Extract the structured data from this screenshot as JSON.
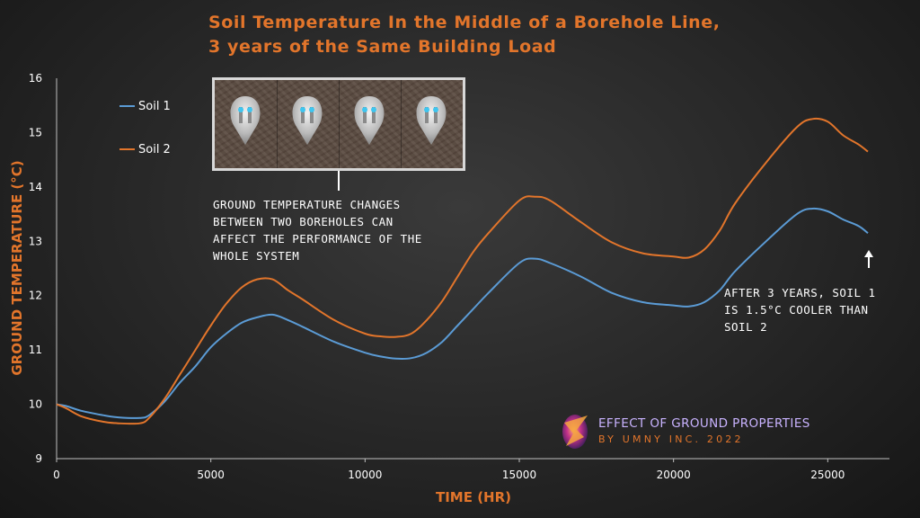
{
  "title_lines": [
    "Soil Temperature In the Middle of a Borehole Line,",
    "3 years of the Same Building Load"
  ],
  "annotations": {
    "inset_note": [
      "GROUND TEMPERATURE CHANGES",
      "BETWEEN TWO BOREHOLES CAN",
      "AFFECT THE PERFORMANCE OF THE",
      "WHOLE SYSTEM"
    ],
    "end_note": [
      "AFTER 3 YEARS, SOIL 1",
      "IS 1.5°C COOLER THAN",
      "SOIL 2"
    ]
  },
  "brand": {
    "line1": "EFFECT OF GROUND PROPERTIES",
    "line2": "BY UMNY INC. 2022"
  },
  "colors": {
    "soil1": "#5b9bd5",
    "soil2": "#e2752b",
    "accent": "#e2752b"
  },
  "chart_data": {
    "type": "line",
    "title": "Soil Temperature In the Middle of a Borehole Line, 3 years of the Same Building Load",
    "xlabel": "TIME (HR)",
    "ylabel": "GROUND TEMPERATURE (°C)",
    "xlim": [
      0,
      27000
    ],
    "ylim": [
      9,
      16
    ],
    "xticks": [
      0,
      5000,
      10000,
      15000,
      20000,
      25000
    ],
    "yticks": [
      9,
      10,
      11,
      12,
      13,
      14,
      15,
      16
    ],
    "grid": false,
    "legend": "top-left",
    "series": [
      {
        "name": "Soil 1",
        "x": [
          0,
          300,
          800,
          1500,
          2000,
          2700,
          3000,
          3500,
          4000,
          4500,
          5000,
          5500,
          6000,
          6500,
          7000,
          7500,
          8000,
          9000,
          10000,
          10500,
          11000,
          11500,
          12000,
          12500,
          13000,
          13500,
          14000,
          15000,
          15500,
          16000,
          17000,
          18000,
          19000,
          20000,
          20500,
          21000,
          21500,
          22000,
          23000,
          24000,
          24500,
          25000,
          25500,
          26000,
          26300
        ],
        "values": [
          10.0,
          9.97,
          9.88,
          9.8,
          9.76,
          9.75,
          9.8,
          10.05,
          10.4,
          10.7,
          11.05,
          11.3,
          11.5,
          11.6,
          11.65,
          11.55,
          11.42,
          11.15,
          10.95,
          10.88,
          10.84,
          10.85,
          10.95,
          11.15,
          11.45,
          11.75,
          12.05,
          12.6,
          12.68,
          12.6,
          12.35,
          12.05,
          11.88,
          11.82,
          11.8,
          11.88,
          12.1,
          12.45,
          13.0,
          13.5,
          13.6,
          13.55,
          13.4,
          13.28,
          13.15
        ]
      },
      {
        "name": "Soil 2",
        "x": [
          0,
          300,
          800,
          1500,
          2000,
          2700,
          3000,
          3500,
          4000,
          4500,
          5000,
          5500,
          6000,
          6500,
          7000,
          7500,
          8000,
          9000,
          10000,
          10500,
          11000,
          11500,
          12000,
          12500,
          13000,
          13500,
          14000,
          15000,
          15500,
          16000,
          17000,
          18000,
          19000,
          20000,
          20500,
          21000,
          21500,
          22000,
          23000,
          24000,
          24500,
          25000,
          25500,
          26000,
          26300
        ],
        "values": [
          10.0,
          9.93,
          9.78,
          9.68,
          9.65,
          9.65,
          9.75,
          10.1,
          10.55,
          11.0,
          11.45,
          11.85,
          12.15,
          12.3,
          12.3,
          12.1,
          11.92,
          11.55,
          11.3,
          11.25,
          11.24,
          11.3,
          11.55,
          11.9,
          12.35,
          12.8,
          13.15,
          13.75,
          13.82,
          13.75,
          13.35,
          12.98,
          12.78,
          12.72,
          12.7,
          12.85,
          13.2,
          13.7,
          14.45,
          15.1,
          15.25,
          15.2,
          14.95,
          14.78,
          14.65
        ]
      }
    ]
  }
}
